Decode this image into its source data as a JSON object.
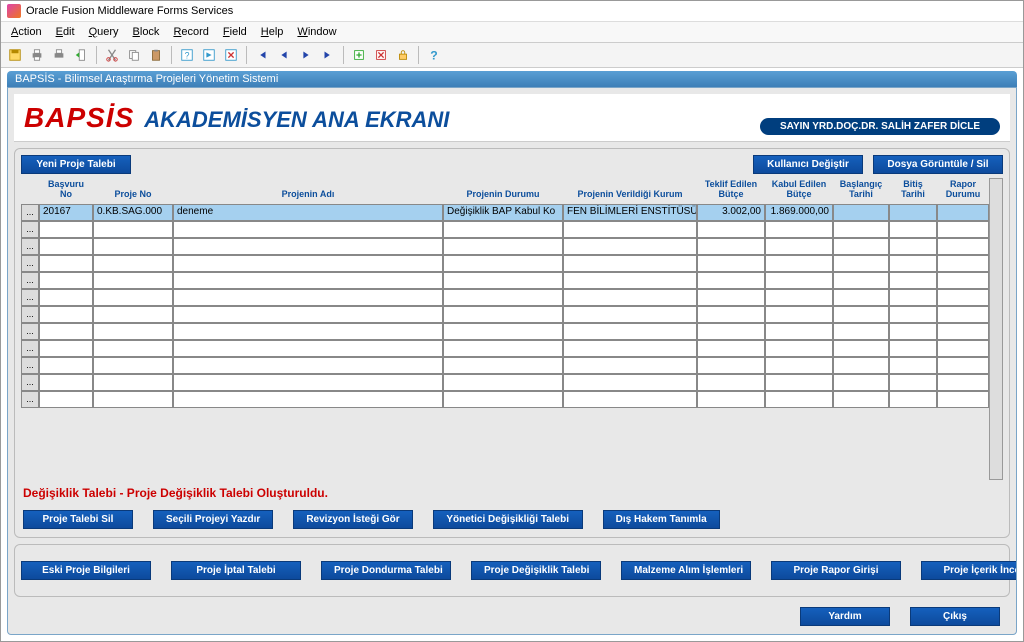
{
  "app": {
    "title": "Oracle Fusion Middleware Forms Services"
  },
  "menus": [
    "Action",
    "Edit",
    "Query",
    "Block",
    "Record",
    "Field",
    "Help",
    "Window"
  ],
  "subwin_title": "BAPSİS - Bilimsel Araştırma Projeleri Yönetim Sistemi",
  "logo_text": "BAPSİS",
  "page_heading": "AKADEMİSYEN ANA EKRANI",
  "user_badge": "SAYIN YRD.DOÇ.DR. SALİH ZAFER DİCLE",
  "buttons": {
    "yeni_proje": "Yeni Proje Talebi",
    "kullanici_degistir": "Kullanıcı Değiştir",
    "dosya_goruntule": "Dosya Görüntüle / Sil",
    "proje_talebi_sil": "Proje Talebi Sil",
    "secili_yazdir": "Seçili Projeyi Yazdır",
    "revizyon": "Revizyon İsteği Gör",
    "yonetici": "Yönetici Değişikliği Talebi",
    "dis_hakem": "Dış Hakem Tanımla",
    "eski_proje": "Eski Proje Bilgileri",
    "iptal": "Proje İptal Talebi",
    "dondurma": "Proje Dondurma Talebi",
    "degisiklik": "Proje Değişiklik Talebi",
    "malzeme": "Malzeme Alım İşlemleri",
    "rapor_giris": "Proje Rapor Girişi",
    "icerik": "Proje İçerik İncele",
    "yardim": "Yardım",
    "cikis": "Çıkış"
  },
  "columns": {
    "basvuru": "Başvuru No",
    "projeno": "Proje No",
    "ad": "Projenin Adı",
    "durum": "Projenin Durumu",
    "kurum": "Projenin Verildiği Kurum",
    "tbutce": "Teklif Edilen Bütçe",
    "kbutce": "Kabul Edilen Bütçe",
    "bas": "Başlangıç Tarihi",
    "bit": "Bitiş Tarihi",
    "rapor": "Rapor Durumu"
  },
  "rows": [
    {
      "basvuru": "20167",
      "projeno": "0.KB.SAG.000",
      "ad": "deneme",
      "durum": "Değişiklik BAP Kabul Ko",
      "kurum": "FEN BİLİMLERİ ENSTİTÜSÜ",
      "tbutce": "3.002,00",
      "kbutce": "1.869.000,00",
      "bas": "",
      "bit": "",
      "rapor": ""
    }
  ],
  "empty_rows": 11,
  "status_message": "Değişiklik Talebi  -  Proje Değişiklik Talebi Oluşturuldu.",
  "colors": {
    "accent": "#0c4e9c",
    "btn_bg": "#1355a8",
    "danger": "#cc0000",
    "panel": "#e8e8e8",
    "selected": "#a5d0ef"
  }
}
